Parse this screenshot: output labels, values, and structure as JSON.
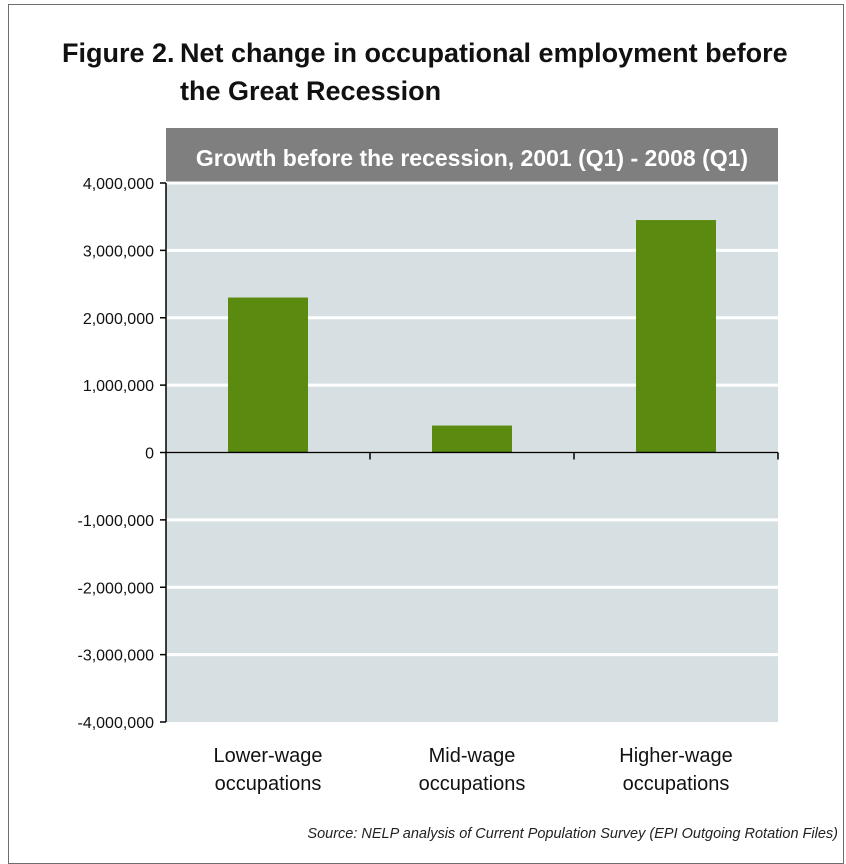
{
  "figure": {
    "label": "Figure 2.",
    "title_line1": "Net change in occupational employment before",
    "title_line2": "the Great Recession",
    "source": "Source: NELP analysis of Current Population Survey (EPI Outgoing Rotation Files)"
  },
  "chart_data": {
    "type": "bar",
    "title": "Growth before the recession, 2001 (Q1) - 2008 (Q1)",
    "categories": [
      [
        "Lower-wage",
        "occupations"
      ],
      [
        "Mid-wage",
        "occupations"
      ],
      [
        "Higher-wage",
        "occupations"
      ]
    ],
    "values": [
      2300000,
      400000,
      3450000
    ],
    "ylim": [
      -4000000,
      4000000
    ],
    "yticks": [
      4000000,
      3000000,
      2000000,
      1000000,
      0,
      -1000000,
      -2000000,
      -3000000,
      -4000000
    ],
    "ytick_labels": [
      "4,000,000",
      "3,000,000",
      "2,000,000",
      "1,000,000",
      "0",
      "-1,000,000",
      "-2,000,000",
      "-3,000,000",
      "-4,000,000"
    ],
    "grid": true,
    "colors": {
      "bar": "#5a8a0f",
      "plot_background": "#d6e0e2",
      "header_band": "#7f7f7f",
      "header_text": "#ffffff",
      "grid": "#ffffff"
    }
  }
}
